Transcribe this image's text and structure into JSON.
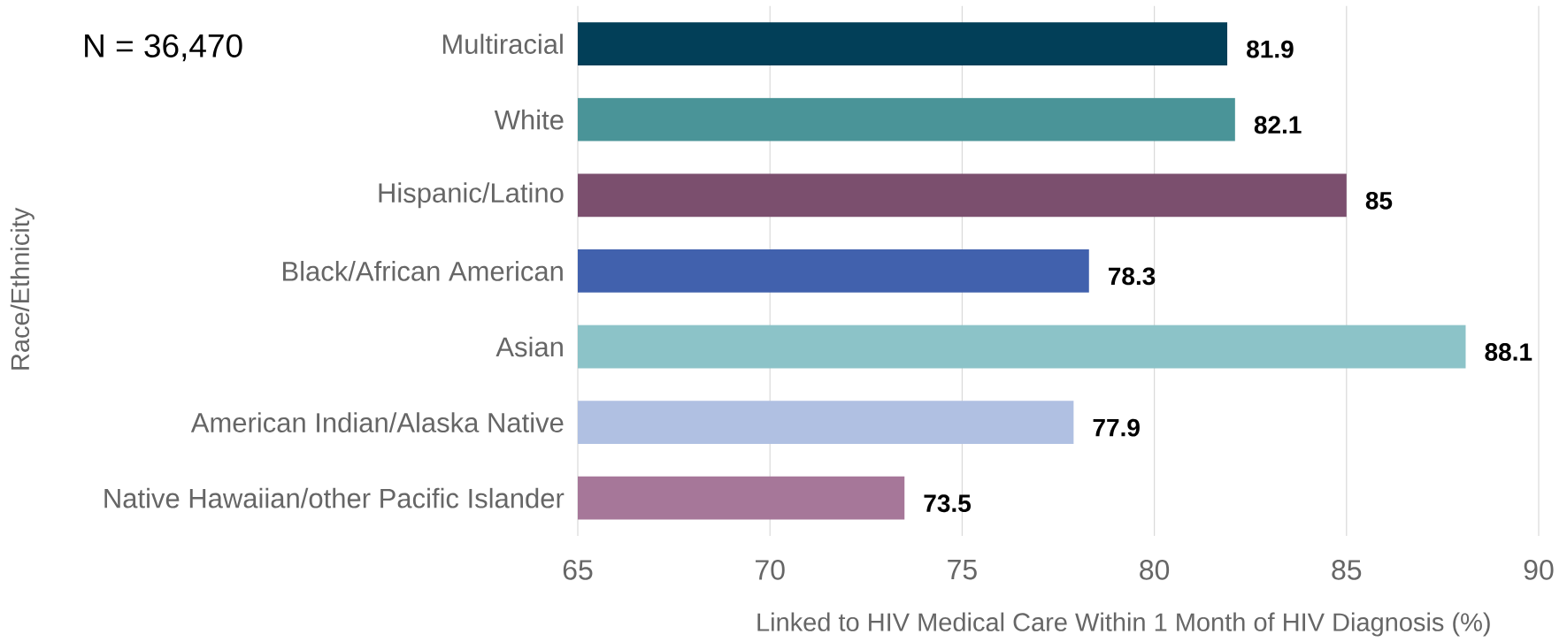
{
  "chart_data": {
    "type": "bar",
    "orientation": "horizontal",
    "xlabel": "Linked to HIV Medical Care Within 1 Month of HIV Diagnosis (%)",
    "ylabel": "Race/Ethnicity",
    "annotations": [
      "N = 36,470"
    ],
    "categories": [
      "Multiracial",
      "White",
      "Hispanic/Latino",
      "Black/African American",
      "Asian",
      "American Indian/Alaska Native",
      "Native Hawaiian/other Pacific Islander"
    ],
    "values": [
      81.9,
      82.1,
      85,
      78.3,
      88.1,
      77.9,
      73.5
    ],
    "colors": [
      "#023f58",
      "#4a9498",
      "#7b4f6e",
      "#4161ad",
      "#8cc3c8",
      "#b0c0e2",
      "#a67799"
    ],
    "xlim": [
      65,
      90
    ],
    "xticks": [
      65,
      70,
      75,
      80,
      85,
      90
    ],
    "grid": "x",
    "data_labels": true
  }
}
